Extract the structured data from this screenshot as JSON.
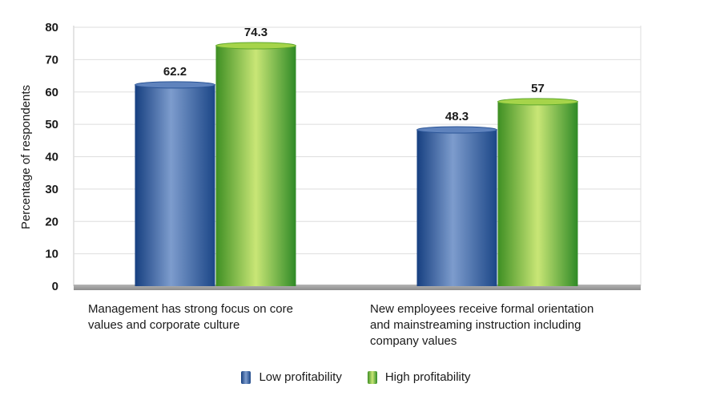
{
  "chart_data": {
    "type": "bar",
    "ylabel": "Percentage of respondents",
    "ylim": [
      0,
      80
    ],
    "yticks": [
      0,
      10,
      20,
      30,
      40,
      50,
      60,
      70,
      80
    ],
    "grid": true,
    "legend_position": "bottom",
    "categories": [
      "Management has strong focus on core\nvalues and corporate culture",
      "New employees receive formal orientation\nand mainstreaming instruction including\ncompany values"
    ],
    "series": [
      {
        "name": "Low profitability",
        "values": [
          62.2,
          48.3
        ],
        "labels": [
          "62.2",
          "48.3"
        ],
        "color": "#3f69a8"
      },
      {
        "name": "High profitability",
        "values": [
          74.3,
          57
        ],
        "labels": [
          "74.3",
          "57"
        ],
        "color": "#7fbf2f"
      }
    ]
  }
}
